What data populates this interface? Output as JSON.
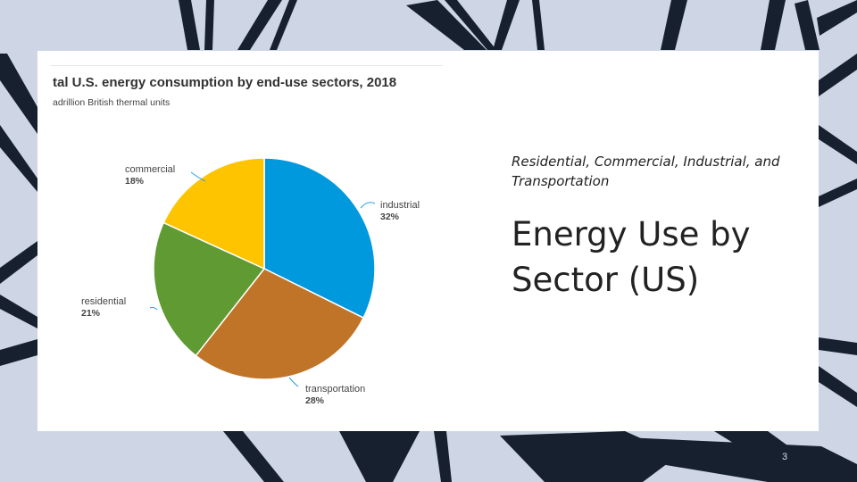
{
  "slide": {
    "subtitle": "Residential, Commercial, Industrial, and Transportation",
    "title": "Energy Use by Sector (US)",
    "page_number": "3"
  },
  "colors": {
    "background": "#ced6e6",
    "brush_strokes": "#16202e",
    "card": "#ffffff"
  },
  "chart_data": {
    "type": "pie",
    "title": "tal U.S. energy consumption by end-use sectors, 2018",
    "subtitle": "adrillion British thermal units",
    "slices": [
      {
        "label": "industrial",
        "pct_label": "32%",
        "value": 32,
        "color": "#0099dd"
      },
      {
        "label": "transportation",
        "pct_label": "28%",
        "value": 28,
        "color": "#c07428"
      },
      {
        "label": "residential",
        "pct_label": "21%",
        "value": 21,
        "color": "#5f9a32"
      },
      {
        "label": "commercial",
        "pct_label": "18%",
        "value": 18,
        "color": "#ffc400"
      }
    ],
    "label_color": "#444444",
    "leader_color": "#2aa0dd"
  }
}
